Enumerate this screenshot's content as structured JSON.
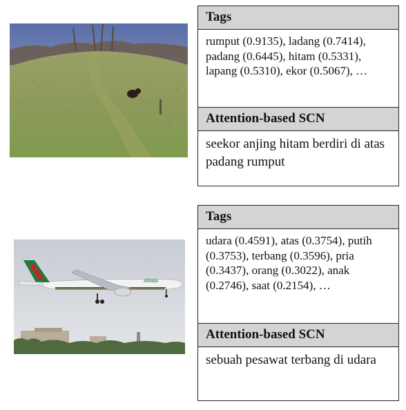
{
  "examples": [
    {
      "image_alt": "black dog on a grassy hill",
      "tags_header": "Tags",
      "tags_text": "rumput (0.9135), ladang (0.7414), padang (0.6445), hitam (0.5331), lapang (0.5310), ekor (0.5067), …",
      "caption_header": "Attention-based SCN",
      "caption_text": "seekor anjing hitam berdiri di atas padang rumput"
    },
    {
      "image_alt": "airliner flying over buildings",
      "airline_text": "Alitalia",
      "tags_header": "Tags",
      "tags_text": "udara (0.4591), atas (0.3754), putih (0.3753), terbang (0.3596), pria (0.3437), orang (0.3022), anak (0.2746), saat (0.2154), …",
      "caption_header": "Attention-based SCN",
      "caption_text": "sebuah pesawat terbang di udara"
    }
  ]
}
